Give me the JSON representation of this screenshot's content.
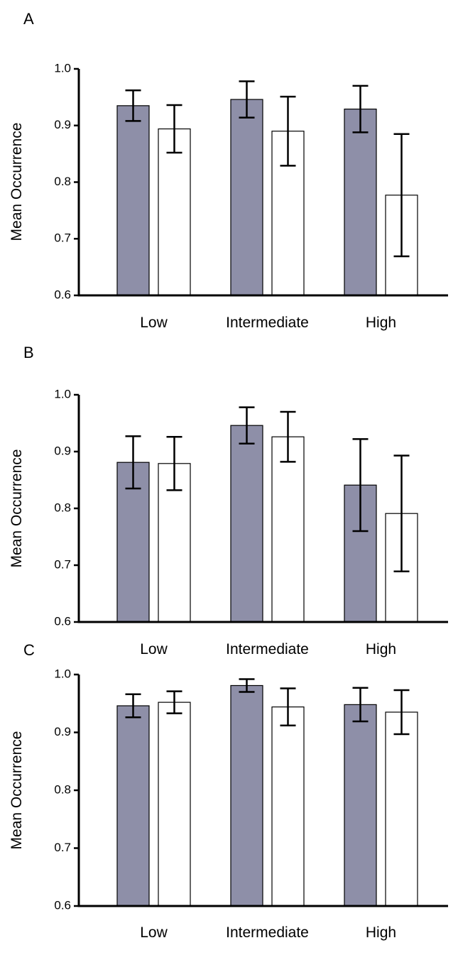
{
  "colors": {
    "series1": "#8e8fa8",
    "series2": "#ffffff",
    "axis": "#000000"
  },
  "chart_data": [
    {
      "type": "bar",
      "panel": "A",
      "categories": [
        "Low",
        "Intermediate",
        "High"
      ],
      "ylabel": "Mean Occurrence",
      "ylim": [
        0.6,
        1.0
      ],
      "yticks": [
        "0.6",
        "0.7",
        "0.8",
        "0.9",
        "1.0"
      ],
      "series": [
        {
          "color": "#8e8fa8",
          "values": [
            0.935,
            0.946,
            0.929
          ],
          "error": [
            0.027,
            0.032,
            0.041
          ]
        },
        {
          "color": "#ffffff",
          "values": [
            0.894,
            0.89,
            0.777
          ],
          "error": [
            0.042,
            0.061,
            0.108
          ]
        }
      ]
    },
    {
      "type": "bar",
      "panel": "B",
      "categories": [
        "Low",
        "Intermediate",
        "High"
      ],
      "ylabel": "Mean Occurrence",
      "ylim": [
        0.6,
        1.0
      ],
      "yticks": [
        "0.6",
        "0.7",
        "0.8",
        "0.9",
        "1.0"
      ],
      "series": [
        {
          "color": "#8e8fa8",
          "values": [
            0.881,
            0.946,
            0.841
          ],
          "error": [
            0.046,
            0.032,
            0.081
          ]
        },
        {
          "color": "#ffffff",
          "values": [
            0.879,
            0.926,
            0.791
          ],
          "error": [
            0.047,
            0.044,
            0.102
          ]
        }
      ]
    },
    {
      "type": "bar",
      "panel": "C",
      "categories": [
        "Low",
        "Intermediate",
        "High"
      ],
      "ylabel": "Mean Occurrence",
      "ylim": [
        0.6,
        1.0
      ],
      "yticks": [
        "0.6",
        "0.7",
        "0.8",
        "0.9",
        "1.0"
      ],
      "series": [
        {
          "color": "#8e8fa8",
          "values": [
            0.946,
            0.981,
            0.948
          ],
          "error": [
            0.02,
            0.011,
            0.029
          ]
        },
        {
          "color": "#ffffff",
          "values": [
            0.952,
            0.944,
            0.935
          ],
          "error": [
            0.019,
            0.032,
            0.038
          ]
        }
      ]
    }
  ]
}
